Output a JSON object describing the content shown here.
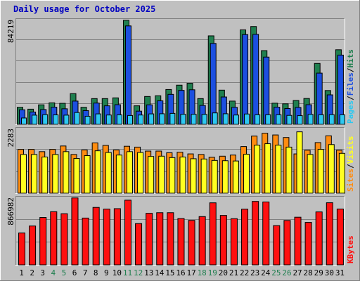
{
  "title": "Daily usage for October 2025",
  "colors": {
    "background": "#c0c0c0",
    "title": "#0000c0",
    "hits": "#1f7f4f",
    "files": "#1c4fe0",
    "pages": "#2ec8f0",
    "visits": "#ffff20",
    "sites": "#ff8c10",
    "kbytes": "#ff1010",
    "weekend_label": "#1f7f4f",
    "weekday_label": "#000000"
  },
  "chart_data": [
    {
      "type": "bar",
      "panel": "hits-files-pages",
      "categories": [
        "1",
        "2",
        "3",
        "4",
        "5",
        "6",
        "7",
        "8",
        "9",
        "10",
        "11",
        "12",
        "13",
        "14",
        "15",
        "16",
        "17",
        "18",
        "19",
        "20",
        "21",
        "22",
        "23",
        "24",
        "25",
        "26",
        "27",
        "28",
        "29",
        "30",
        "31"
      ],
      "weekend_days": [
        "4",
        "5",
        "11",
        "12",
        "18",
        "19",
        "25",
        "26"
      ],
      "ymax_label": "84219",
      "ylim": [
        0,
        84219
      ],
      "legend": {
        "pages": "Pages",
        "files": "Files",
        "hits": "Hits",
        "sep1": "/",
        "sep2": "/"
      },
      "series": [
        {
          "name": "Hits",
          "values": [
            14000,
            12500,
            16000,
            17600,
            17200,
            25000,
            14000,
            21000,
            21000,
            21600,
            84000,
            15200,
            22700,
            23300,
            28300,
            31800,
            33300,
            21000,
            71500,
            27800,
            19000,
            76300,
            79000,
            59600,
            17300,
            16800,
            19500,
            21100,
            49300,
            27500,
            60300
          ]
        },
        {
          "name": "Files",
          "values": [
            12000,
            10200,
            12200,
            14100,
            12800,
            19000,
            11300,
            17400,
            15200,
            16100,
            79500,
            10900,
            16000,
            19200,
            24400,
            27600,
            28100,
            15500,
            65400,
            22300,
            14000,
            72500,
            72700,
            54400,
            14100,
            13000,
            13900,
            16100,
            41500,
            24000,
            56000
          ]
        },
        {
          "name": "Pages",
          "values": [
            5400,
            7700,
            8100,
            7900,
            7700,
            9800,
            6800,
            8700,
            7800,
            7900,
            7400,
            7800,
            8700,
            8800,
            9100,
            8400,
            8400,
            8300,
            9500,
            8800,
            7800,
            8600,
            8000,
            8000,
            8000,
            7500,
            7300,
            8300,
            8000,
            8100,
            8000
          ]
        }
      ]
    },
    {
      "type": "bar",
      "panel": "visits-sites",
      "categories": [
        "1",
        "2",
        "3",
        "4",
        "5",
        "6",
        "7",
        "8",
        "9",
        "10",
        "11",
        "12",
        "13",
        "14",
        "15",
        "16",
        "17",
        "18",
        "19",
        "20",
        "21",
        "22",
        "23",
        "24",
        "25",
        "26",
        "27",
        "28",
        "29",
        "30",
        "31"
      ],
      "ymax_label": "2283",
      "ylim": [
        0,
        2283
      ],
      "legend": {
        "sites": "Sites",
        "visits": "Visits",
        "sep": "/"
      },
      "series": [
        {
          "name": "Sites",
          "values": [
            1560,
            1560,
            1480,
            1560,
            1680,
            1380,
            1540,
            1790,
            1700,
            1540,
            1670,
            1640,
            1500,
            1500,
            1440,
            1460,
            1400,
            1380,
            1280,
            1320,
            1360,
            1660,
            2030,
            2130,
            2070,
            1980,
            1400,
            1530,
            1800,
            2040,
            1530
          ]
        },
        {
          "name": "Visits",
          "values": [
            1380,
            1380,
            1290,
            1380,
            1480,
            1240,
            1340,
            1510,
            1450,
            1360,
            1480,
            1450,
            1310,
            1320,
            1270,
            1290,
            1230,
            1220,
            1170,
            1160,
            1150,
            1390,
            1710,
            1760,
            1710,
            1640,
            2180,
            1380,
            1560,
            1730,
            1420
          ]
        }
      ]
    },
    {
      "type": "bar",
      "panel": "kbytes",
      "categories": [
        "1",
        "2",
        "3",
        "4",
        "5",
        "6",
        "7",
        "8",
        "9",
        "10",
        "11",
        "12",
        "13",
        "14",
        "15",
        "16",
        "17",
        "18",
        "19",
        "20",
        "21",
        "22",
        "23",
        "24",
        "25",
        "26",
        "27",
        "28",
        "29",
        "30",
        "31"
      ],
      "ymax_label": "866982",
      "ylim": [
        0,
        866982
      ],
      "legend": {
        "kbytes": "KBytes"
      },
      "series": [
        {
          "name": "KBytes",
          "values": [
            414000,
            504000,
            614000,
            688000,
            662000,
            865000,
            606000,
            743000,
            721000,
            727000,
            836000,
            535000,
            667000,
            675000,
            675000,
            600000,
            576000,
            625000,
            802000,
            640000,
            598000,
            720000,
            820000,
            813000,
            509000,
            575000,
            617000,
            550000,
            685000,
            803000,
            722000
          ]
        }
      ]
    }
  ]
}
